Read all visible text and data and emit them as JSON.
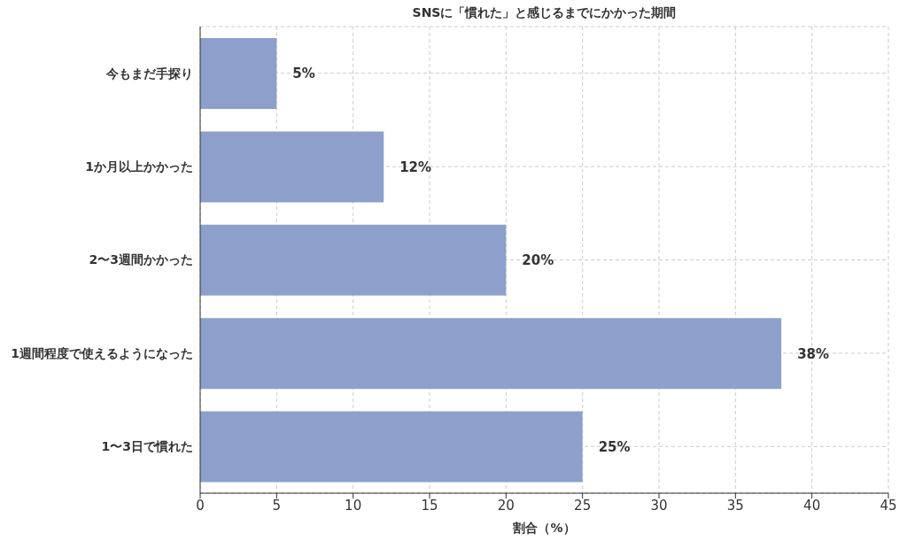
{
  "chart_data": {
    "type": "bar",
    "orientation": "horizontal",
    "title": "SNSに「慣れた」と感じるまでにかかった期間",
    "xlabel": "割合（%）",
    "categories": [
      "今もまだ手探り",
      "1か月以上かかった",
      "2〜3週間かかった",
      "1週間程度で使えるようになった",
      "1〜3日で慣れた"
    ],
    "values": [
      5,
      12,
      20,
      38,
      25
    ],
    "value_labels": [
      "5%",
      "12%",
      "20%",
      "38%",
      "25%"
    ],
    "color": "#8da0cb",
    "xlim": [
      0,
      45
    ],
    "xticks": [
      0,
      5,
      10,
      15,
      20,
      25,
      30,
      35,
      40,
      45
    ],
    "grid": true
  }
}
